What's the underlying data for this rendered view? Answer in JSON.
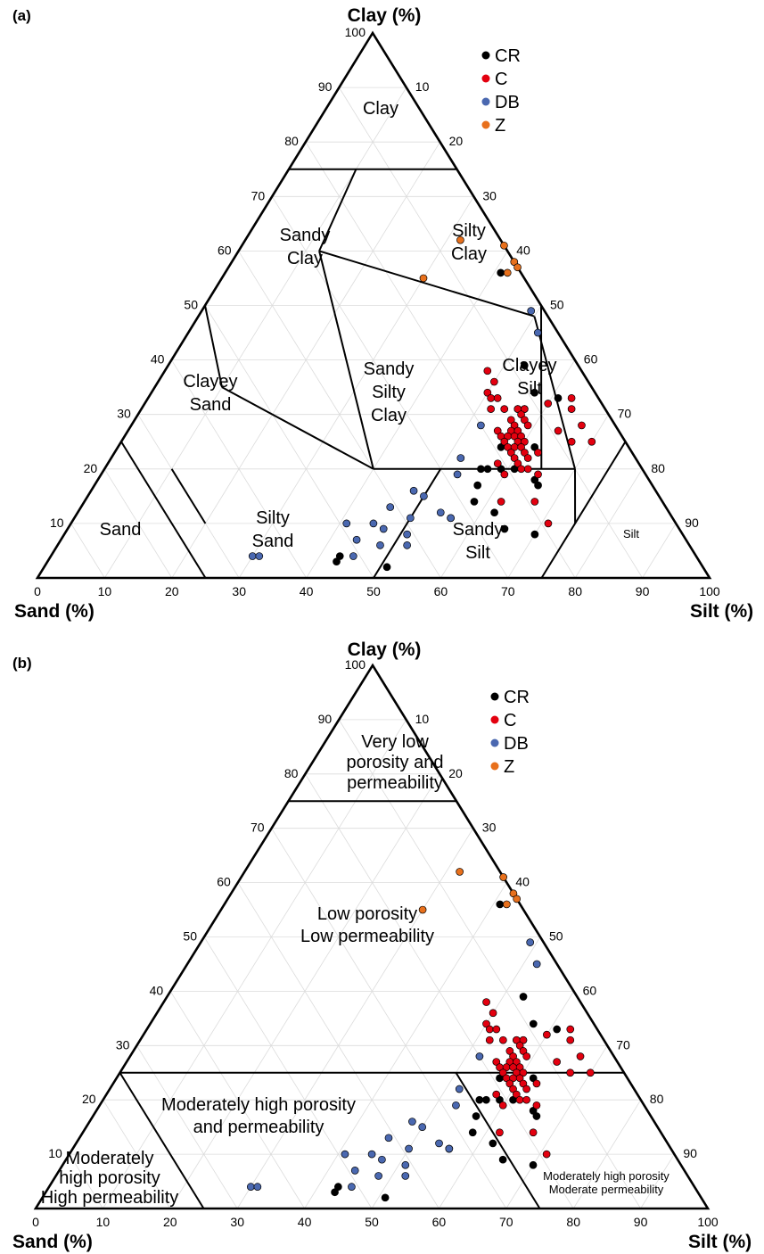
{
  "panels": [
    {
      "label": "(a)",
      "axis_labels": {
        "top": "Clay (%)",
        "left": "Sand (%)",
        "right": "Silt (%)"
      },
      "bottom_ticks": [
        "0",
        "10",
        "20",
        "30",
        "40",
        "50",
        "60",
        "70",
        "80",
        "90",
        "100"
      ],
      "left_ticks": [
        "100",
        "90",
        "80",
        "70",
        "60",
        "50",
        "40",
        "30",
        "20",
        "10"
      ],
      "right_ticks": [
        "10",
        "20",
        "30",
        "40",
        "50",
        "60",
        "70",
        "80",
        "90"
      ],
      "regions": [
        {
          "lines": [
            "Clay"
          ]
        },
        {
          "lines": [
            "Sandy",
            "Clay"
          ]
        },
        {
          "lines": [
            "Silty",
            "Clay"
          ]
        },
        {
          "lines": [
            "Sandy",
            "Silty",
            "Clay"
          ]
        },
        {
          "lines": [
            "Clayey",
            "Sand"
          ]
        },
        {
          "lines": [
            "Clayey",
            "Silt"
          ]
        },
        {
          "lines": [
            "Sand"
          ]
        },
        {
          "lines": [
            "Silty",
            "Sand"
          ]
        },
        {
          "lines": [
            "Sandy",
            "Silt"
          ]
        },
        {
          "lines": [
            "Silt"
          ]
        }
      ],
      "legend": [
        {
          "label": "CR",
          "color": "#000000"
        },
        {
          "label": "C",
          "color": "#e3000f"
        },
        {
          "label": "DB",
          "color": "#4a68b0"
        },
        {
          "label": "Z",
          "color": "#e8701c"
        }
      ]
    },
    {
      "label": "(b)",
      "axis_labels": {
        "top": "Clay (%)",
        "left": "Sand (%)",
        "right": "Silt (%)"
      },
      "bottom_ticks": [
        "0",
        "10",
        "20",
        "30",
        "40",
        "50",
        "60",
        "70",
        "80",
        "90",
        "100"
      ],
      "left_ticks": [
        "100",
        "90",
        "80",
        "70",
        "60",
        "50",
        "40",
        "30",
        "20",
        "10"
      ],
      "right_ticks": [
        "10",
        "20",
        "30",
        "40",
        "50",
        "60",
        "70",
        "80",
        "90"
      ],
      "regions": [
        {
          "lines": [
            "Very low",
            "porosity and",
            "permeability"
          ]
        },
        {
          "lines": [
            "Low porosity",
            "Low permeability"
          ]
        },
        {
          "lines": [
            "Moderately high porosity",
            "and permeability"
          ]
        },
        {
          "lines": [
            "Moderately",
            "high porosity",
            "High permeability"
          ]
        },
        {
          "lines": [
            "Moderately high porosity",
            "Moderate permeability"
          ]
        }
      ],
      "legend": [
        {
          "label": "CR",
          "color": "#000000"
        },
        {
          "label": "C",
          "color": "#e3000f"
        },
        {
          "label": "DB",
          "color": "#4a68b0"
        },
        {
          "label": "Z",
          "color": "#e8701c"
        }
      ]
    }
  ],
  "chart_data": {
    "type": "scatter",
    "subtype": "ternary",
    "axes": {
      "top": "Clay (%)",
      "left": "Sand (%)",
      "right": "Silt (%)",
      "range": [
        0,
        100
      ]
    },
    "grid": true,
    "legend_position": "top-right",
    "series": [
      {
        "name": "CR",
        "color": "#000000",
        "points": [
          {
            "clay": 56,
            "silt": 41
          },
          {
            "clay": 39,
            "silt": 53
          },
          {
            "clay": 34,
            "silt": 57
          },
          {
            "clay": 31,
            "silt": 56
          },
          {
            "clay": 31,
            "silt": 57
          },
          {
            "clay": 33,
            "silt": 61
          },
          {
            "clay": 24,
            "silt": 57
          },
          {
            "clay": 20,
            "silt": 56
          },
          {
            "clay": 20,
            "silt": 57
          },
          {
            "clay": 20,
            "silt": 59
          },
          {
            "clay": 20,
            "silt": 61
          },
          {
            "clay": 17,
            "silt": 57
          },
          {
            "clay": 14,
            "silt": 58
          },
          {
            "clay": 11,
            "silt": 56
          },
          {
            "clay": 9,
            "silt": 65
          },
          {
            "clay": 12,
            "silt": 62
          },
          {
            "clay": 4,
            "silt": 43
          },
          {
            "clay": 3,
            "silt": 43
          },
          {
            "clay": 2,
            "silt": 51
          },
          {
            "clay": 18,
            "silt": 65
          },
          {
            "clay": 8,
            "silt": 70
          },
          {
            "clay": 24,
            "silt": 62
          },
          {
            "clay": 17,
            "silt": 66
          }
        ]
      },
      {
        "name": "C",
        "color": "#e3000f",
        "points": [
          {
            "clay": 38,
            "silt": 48
          },
          {
            "clay": 36,
            "silt": 50
          },
          {
            "clay": 34,
            "silt": 50
          },
          {
            "clay": 33,
            "silt": 51
          },
          {
            "clay": 33,
            "silt": 52
          },
          {
            "clay": 31,
            "silt": 52
          },
          {
            "clay": 31,
            "silt": 54
          },
          {
            "clay": 31,
            "silt": 56
          },
          {
            "clay": 31,
            "silt": 57
          },
          {
            "clay": 30,
            "silt": 57
          },
          {
            "clay": 29,
            "silt": 56
          },
          {
            "clay": 29,
            "silt": 58
          },
          {
            "clay": 28,
            "silt": 57
          },
          {
            "clay": 28,
            "silt": 59
          },
          {
            "clay": 27,
            "silt": 55
          },
          {
            "clay": 27,
            "silt": 57
          },
          {
            "clay": 27,
            "silt": 58
          },
          {
            "clay": 26,
            "silt": 56
          },
          {
            "clay": 26,
            "silt": 57
          },
          {
            "clay": 26,
            "silt": 58
          },
          {
            "clay": 26,
            "silt": 59
          },
          {
            "clay": 25,
            "silt": 57
          },
          {
            "clay": 25,
            "silt": 59
          },
          {
            "clay": 25,
            "silt": 60
          },
          {
            "clay": 24,
            "silt": 58
          },
          {
            "clay": 24,
            "silt": 59
          },
          {
            "clay": 24,
            "silt": 60
          },
          {
            "clay": 23,
            "silt": 59
          },
          {
            "clay": 23,
            "silt": 61
          },
          {
            "clay": 22,
            "silt": 60
          },
          {
            "clay": 22,
            "silt": 62
          },
          {
            "clay": 21,
            "silt": 58
          },
          {
            "clay": 21,
            "silt": 61
          },
          {
            "clay": 20,
            "silt": 62
          },
          {
            "clay": 20,
            "silt": 63
          },
          {
            "clay": 19,
            "silt": 65
          },
          {
            "clay": 19,
            "silt": 60
          },
          {
            "clay": 33,
            "silt": 63
          },
          {
            "clay": 31,
            "silt": 64
          },
          {
            "clay": 28,
            "silt": 67
          },
          {
            "clay": 27,
            "silt": 64
          },
          {
            "clay": 25,
            "silt": 67
          },
          {
            "clay": 25,
            "silt": 70
          },
          {
            "clay": 14,
            "silt": 62
          },
          {
            "clay": 10,
            "silt": 71
          },
          {
            "clay": 14,
            "silt": 67
          },
          {
            "clay": 32,
            "silt": 60
          },
          {
            "clay": 23,
            "silt": 63
          }
        ]
      },
      {
        "name": "DB",
        "color": "#4a68b0",
        "points": [
          {
            "clay": 49,
            "silt": 49
          },
          {
            "clay": 45,
            "silt": 52
          },
          {
            "clay": 28,
            "silt": 52
          },
          {
            "clay": 22,
            "silt": 52
          },
          {
            "clay": 19,
            "silt": 53
          },
          {
            "clay": 16,
            "silt": 48
          },
          {
            "clay": 13,
            "silt": 46
          },
          {
            "clay": 12,
            "silt": 54
          },
          {
            "clay": 11,
            "silt": 56
          },
          {
            "clay": 11,
            "silt": 50
          },
          {
            "clay": 10,
            "silt": 41
          },
          {
            "clay": 10,
            "silt": 45
          },
          {
            "clay": 9,
            "silt": 47
          },
          {
            "clay": 8,
            "silt": 51
          },
          {
            "clay": 7,
            "silt": 44
          },
          {
            "clay": 6,
            "silt": 48
          },
          {
            "clay": 6,
            "silt": 52
          },
          {
            "clay": 4,
            "silt": 45
          },
          {
            "clay": 4,
            "silt": 30
          },
          {
            "clay": 4,
            "silt": 31
          },
          {
            "clay": 15,
            "silt": 50
          }
        ]
      },
      {
        "name": "Z",
        "color": "#e8701c",
        "points": [
          {
            "clay": 62,
            "silt": 32
          },
          {
            "clay": 61,
            "silt": 39
          },
          {
            "clay": 58,
            "silt": 42
          },
          {
            "clay": 57,
            "silt": 43
          },
          {
            "clay": 56,
            "silt": 42
          },
          {
            "clay": 55,
            "silt": 30
          }
        ]
      }
    ]
  }
}
